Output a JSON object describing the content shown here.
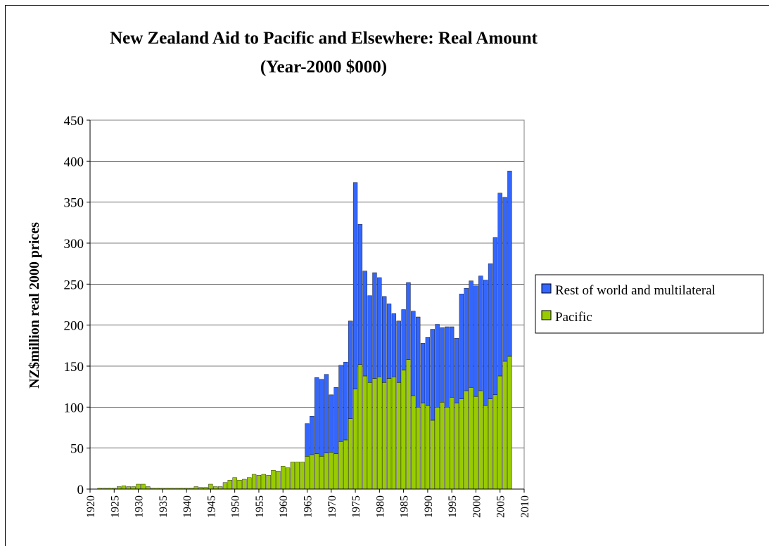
{
  "chart_data": {
    "type": "bar",
    "stacked": true,
    "title_line1": "New Zealand Aid  to Pacific and Elsewhere: Real Amount",
    "title_line2": "(Year-2000 $000)",
    "ylabel": "NZ$million real 2000 prices",
    "xlabel": "",
    "ylim": [
      0,
      450
    ],
    "yticks": [
      0,
      50,
      100,
      150,
      200,
      250,
      300,
      350,
      400,
      450
    ],
    "xlim": [
      1920,
      2010
    ],
    "xticks": [
      1920,
      1925,
      1930,
      1935,
      1940,
      1945,
      1950,
      1955,
      1960,
      1965,
      1970,
      1975,
      1980,
      1985,
      1990,
      1995,
      2000,
      2005,
      2010
    ],
    "grid": "horizontal",
    "legend_position": "right",
    "colors": {
      "pacific": "#99cc00",
      "rest": "#3366ff",
      "plot_background": "#ffffff",
      "gridline": "#000000"
    },
    "x": [
      1922,
      1923,
      1924,
      1925,
      1926,
      1927,
      1928,
      1929,
      1930,
      1931,
      1932,
      1933,
      1934,
      1935,
      1936,
      1937,
      1938,
      1939,
      1940,
      1941,
      1942,
      1943,
      1944,
      1945,
      1946,
      1947,
      1948,
      1949,
      1950,
      1951,
      1952,
      1953,
      1954,
      1955,
      1956,
      1957,
      1958,
      1959,
      1960,
      1961,
      1962,
      1963,
      1964,
      1965,
      1966,
      1967,
      1968,
      1969,
      1970,
      1971,
      1972,
      1973,
      1974,
      1975,
      1976,
      1977,
      1978,
      1979,
      1980,
      1981,
      1982,
      1983,
      1984,
      1985,
      1986,
      1987,
      1988,
      1989,
      1990,
      1991,
      1992,
      1993,
      1994,
      1995,
      1996,
      1997,
      1998,
      1999,
      2000,
      2001,
      2002,
      2003,
      2004,
      2005,
      2006,
      2007
    ],
    "series": [
      {
        "name": "Pacific",
        "color": "#99cc00",
        "values": [
          1,
          1,
          1,
          1,
          3,
          4,
          3,
          3,
          6,
          6,
          3,
          1,
          1,
          1,
          1,
          1,
          1,
          1,
          1,
          1,
          3,
          2,
          2,
          6,
          3,
          3,
          8,
          11,
          14,
          11,
          12,
          14,
          18,
          17,
          18,
          17,
          23,
          22,
          28,
          26,
          33,
          33,
          33,
          40,
          42,
          43,
          40,
          44,
          45,
          43,
          58,
          60,
          86,
          122,
          152,
          138,
          130,
          135,
          137,
          130,
          135,
          137,
          130,
          145,
          158,
          114,
          100,
          105,
          102,
          84,
          100,
          106,
          100,
          112,
          105,
          110,
          120,
          124,
          113,
          120,
          102,
          110,
          115,
          138,
          156,
          162
        ]
      },
      {
        "name": "Rest of world and multilateral",
        "color": "#3366ff",
        "values": [
          0,
          0,
          0,
          0,
          0,
          0,
          0,
          0,
          0,
          0,
          0,
          0,
          0,
          0,
          0,
          0,
          0,
          0,
          0,
          0,
          0,
          0,
          0,
          0,
          0,
          0,
          0,
          0,
          0,
          0,
          0,
          0,
          0,
          0,
          0,
          0,
          0,
          0,
          0,
          0,
          0,
          0,
          0,
          40,
          47,
          93,
          94,
          96,
          70,
          81,
          93,
          95,
          119,
          252,
          171,
          128,
          106,
          129,
          121,
          105,
          91,
          77,
          75,
          74,
          94,
          103,
          110,
          73,
          83,
          111,
          101,
          91,
          98,
          86,
          79,
          128,
          125,
          130,
          135,
          140,
          153,
          165,
          192,
          223,
          200,
          226
        ]
      }
    ]
  },
  "legend": {
    "items": [
      {
        "label": "Rest of world and multilateral",
        "color": "#3366ff"
      },
      {
        "label": "Pacific",
        "color": "#99cc00"
      }
    ]
  }
}
